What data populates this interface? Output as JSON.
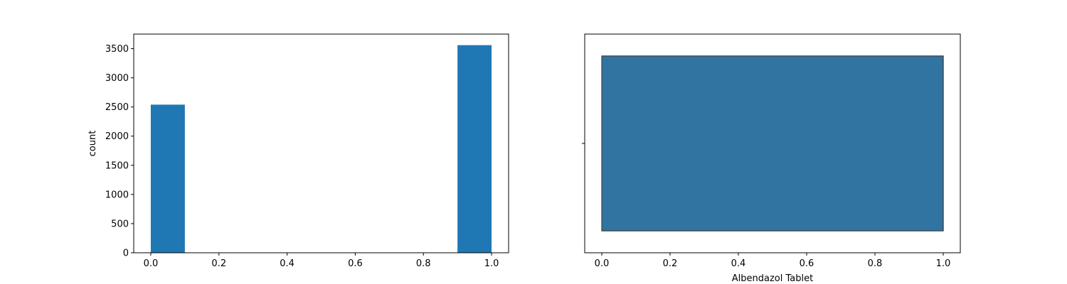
{
  "chart_data": [
    {
      "type": "bar",
      "subtype": "histogram",
      "xlabel": "",
      "ylabel": "count",
      "xlim": [
        -0.05,
        1.05
      ],
      "ylim": [
        0,
        3750
      ],
      "xticks": [
        0.0,
        0.2,
        0.4,
        0.6,
        0.8,
        1.0
      ],
      "xtick_labels": [
        "0.0",
        "0.2",
        "0.4",
        "0.6",
        "0.8",
        "1.0"
      ],
      "yticks": [
        0,
        500,
        1000,
        1500,
        2000,
        2500,
        3000,
        3500
      ],
      "ytick_labels": [
        "0",
        "500",
        "1000",
        "1500",
        "2000",
        "2500",
        "3000",
        "3500"
      ],
      "bins": [
        {
          "x0": 0.0,
          "x1": 0.1,
          "value": 2540
        },
        {
          "x0": 0.9,
          "x1": 1.0,
          "value": 3560
        }
      ],
      "color": "#1f77b4",
      "grid": false
    },
    {
      "type": "box",
      "xlabel": "Albendazol Tablet",
      "ylabel": "",
      "xlim": [
        -0.05,
        1.05
      ],
      "xticks": [
        0.0,
        0.2,
        0.4,
        0.6,
        0.8,
        1.0
      ],
      "xtick_labels": [
        "0.0",
        "0.2",
        "0.4",
        "0.6",
        "0.8",
        "1.0"
      ],
      "box": {
        "min": 0.0,
        "q1": 0.0,
        "median": 1.0,
        "q3": 1.0,
        "max": 1.0
      },
      "color": "#3274a1",
      "grid": false
    }
  ]
}
